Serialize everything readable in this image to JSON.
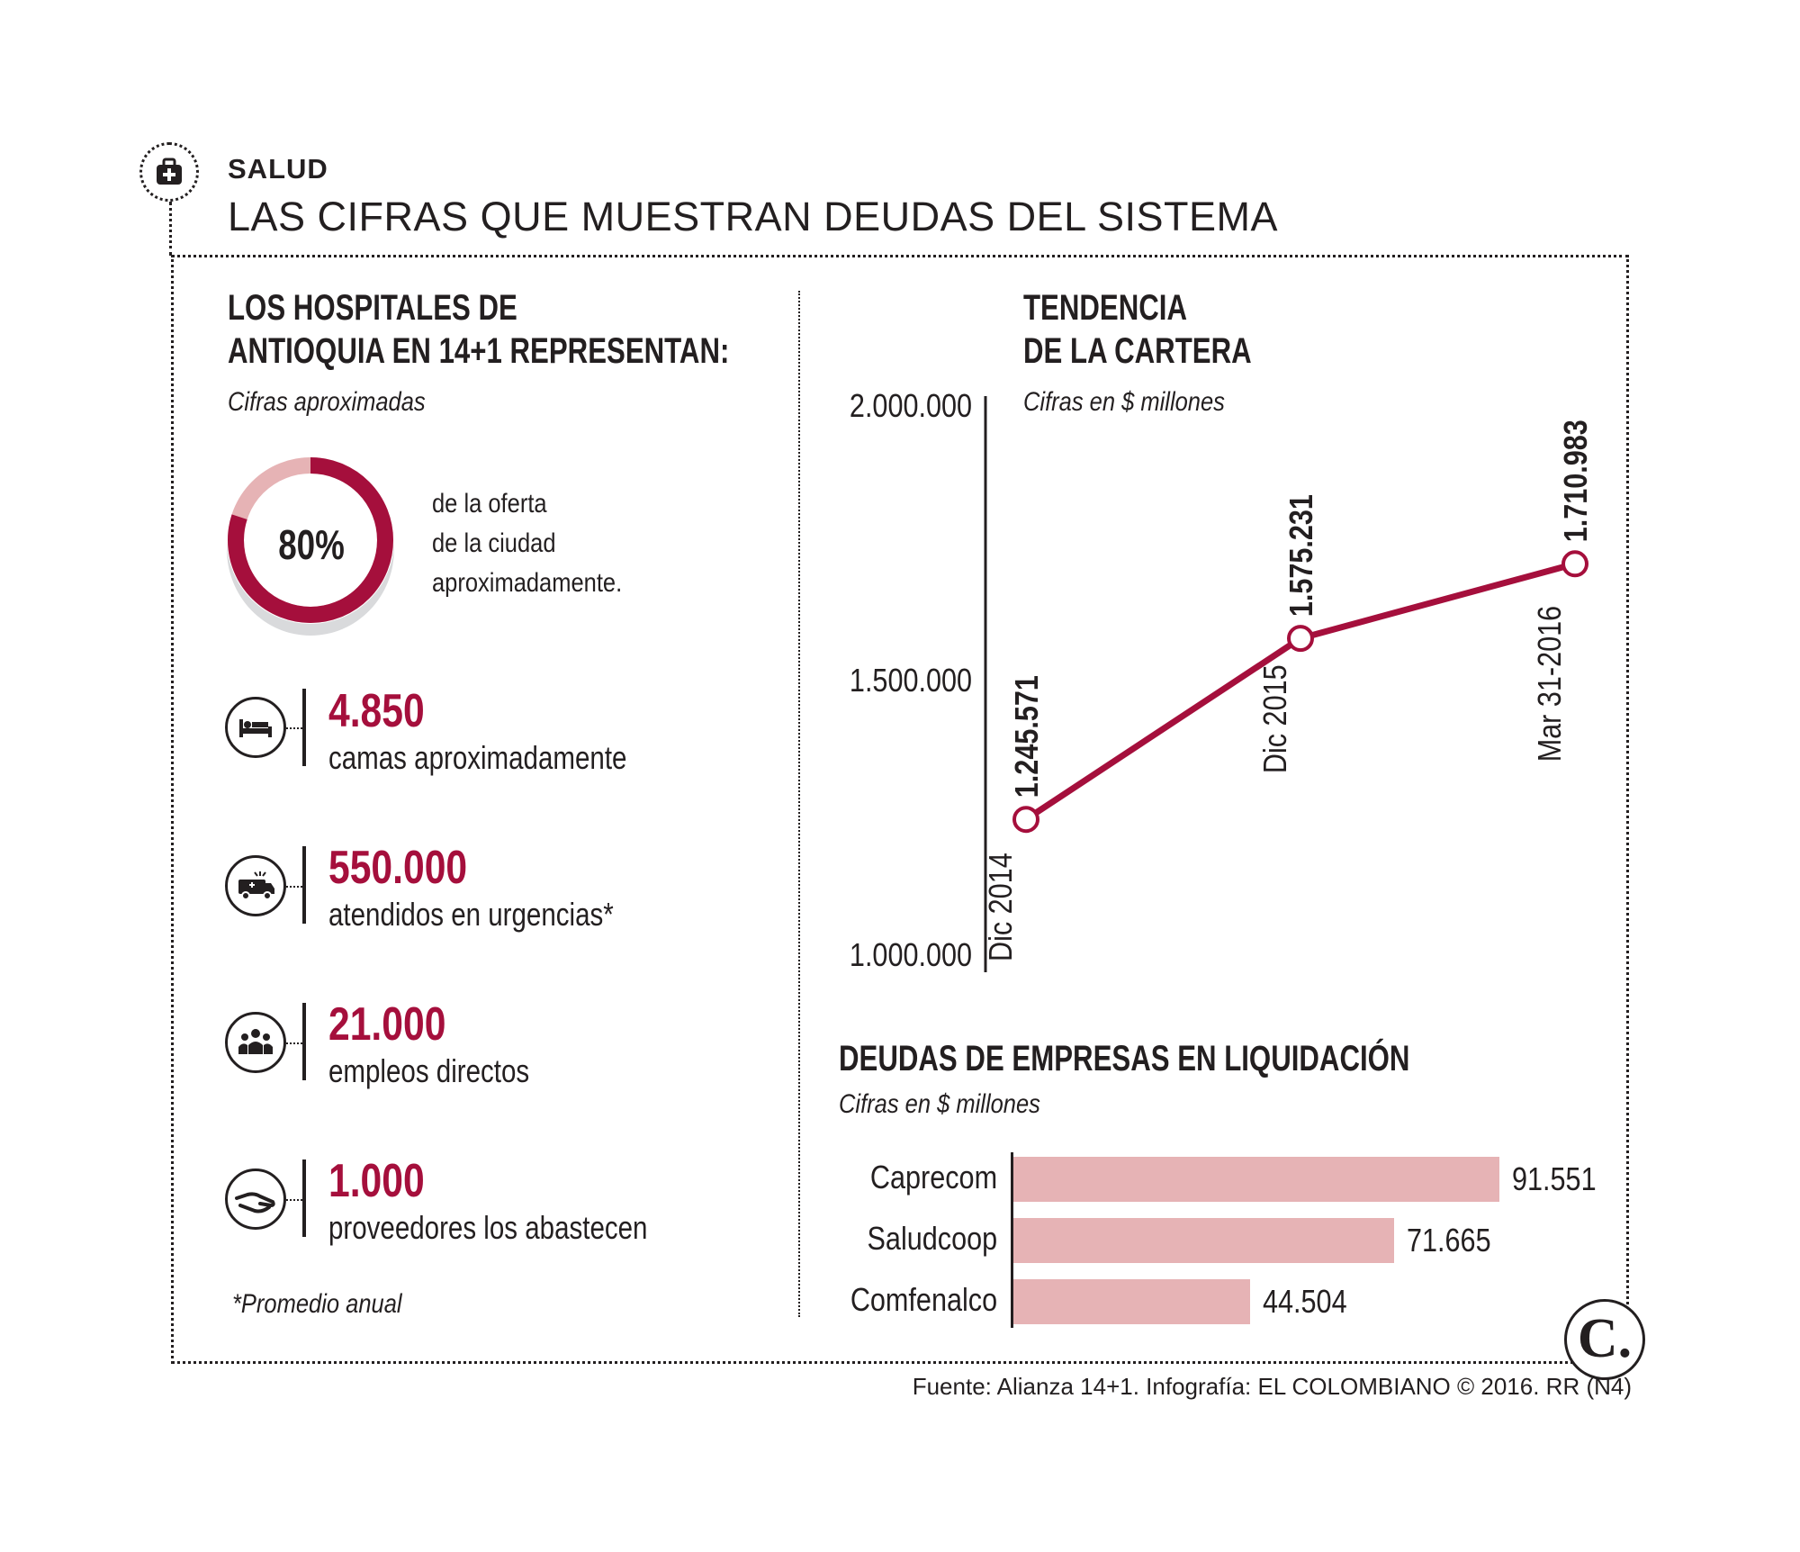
{
  "header": {
    "section": "SALUD",
    "title": "LAS CIFRAS QUE MUESTRAN DEUDAS DEL SISTEMA",
    "section_icon": "medical-kit-icon"
  },
  "left_panel": {
    "title_line1": "LOS HOSPITALES DE",
    "title_line2": "ANTIOQUIA EN 14+1 REPRESENTAN:",
    "subtitle": "Cifras aproximadas",
    "donut": {
      "percent": 80,
      "label": "80%",
      "text_line1": "de la oferta",
      "text_line2": "de la ciudad",
      "text_line3": "aproximadamente.",
      "color": "#a50f3c",
      "rest_color": "#e6b3b5"
    },
    "stats": [
      {
        "value": "4.850",
        "text": "camas aproximadamente",
        "icon": "hospital-bed-icon"
      },
      {
        "value": "550.000",
        "text": "atendidos en urgencias*",
        "icon": "ambulance-icon"
      },
      {
        "value": "21.000",
        "text": "empleos directos",
        "icon": "people-group-icon"
      },
      {
        "value": "1.000",
        "text": "proveedores los abastecen",
        "icon": "supplier-hand-icon"
      }
    ],
    "footnote": "*Promedio anual"
  },
  "chart_data": [
    {
      "type": "line",
      "title": "TENDENCIA\nDE LA CARTERA",
      "title_line1": "TENDENCIA",
      "title_line2": "DE LA CARTERA",
      "subtitle": "Cifras en $ millones",
      "x": [
        "Dic 2014",
        "Dic 2015",
        "Mar 31-2016"
      ],
      "values": [
        1245571,
        1575231,
        1710983
      ],
      "value_labels": [
        "1.245.571",
        "1.575.231",
        "1.710.983"
      ],
      "ylim": [
        1000000,
        2000000
      ],
      "y_ticks": [
        1000000,
        1500000,
        2000000
      ],
      "y_tick_labels": [
        "1.000.000",
        "1.500.000",
        "2.000.000"
      ],
      "grid": false,
      "color": "#a50f3c"
    },
    {
      "type": "bar",
      "orientation": "horizontal",
      "title": "DEUDAS DE EMPRESAS EN LIQUIDACIÓN",
      "subtitle": "Cifras en $ millones",
      "categories": [
        "Caprecom",
        "Saludcoop",
        "Comfenalco"
      ],
      "values": [
        91551,
        71665,
        44504
      ],
      "value_labels": [
        "91.551",
        "71.665",
        "44.504"
      ],
      "color": "#e6b3b5"
    }
  ],
  "footer": {
    "source": "Fuente: Alianza 14+1. Infografía: EL COLOMBIANO © 2016. RR (N4)",
    "logo": "C."
  }
}
